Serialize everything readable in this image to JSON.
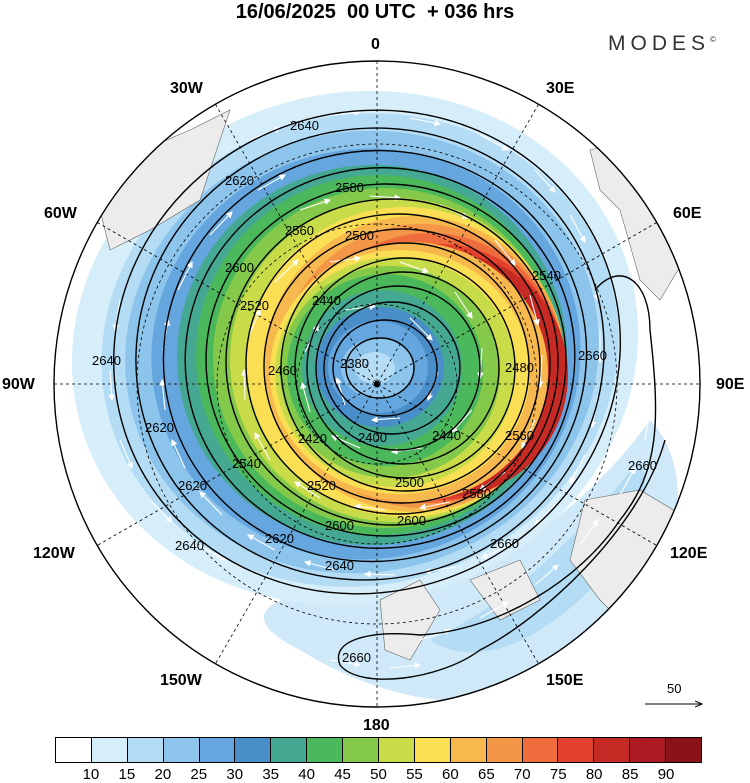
{
  "title": "16/06/2025  00 UTC  + 036 hrs",
  "brand": "MODES",
  "brand_mark": "©",
  "longitude_labels": {
    "0": "0",
    "30E": "30E",
    "60E": "60E",
    "90E": "90E",
    "120E": "120E",
    "150E": "150E",
    "180": "180",
    "150W": "150W",
    "120W": "120W",
    "90W": "90W",
    "60W": "60W",
    "30W": "30W"
  },
  "reference_vector_label": "50",
  "colorbar": {
    "ticks": [
      "10",
      "15",
      "20",
      "25",
      "30",
      "35",
      "40",
      "45",
      "50",
      "55",
      "60",
      "65",
      "70",
      "75",
      "80",
      "85",
      "90"
    ],
    "colors": [
      "#ffffff",
      "#d6eefa",
      "#b4dcf5",
      "#8cc4ec",
      "#64a6dd",
      "#4a8ec9",
      "#45a892",
      "#4cb85c",
      "#84c94a",
      "#c8dc4a",
      "#fadf55",
      "#f7b94d",
      "#f39647",
      "#ef6d3c",
      "#e2412e",
      "#c62a25",
      "#ab1a20",
      "#8b1218"
    ]
  },
  "contours": {
    "height_labels": [
      "2640",
      "2620",
      "2580",
      "2560",
      "2500",
      "2540",
      "2600",
      "2520",
      "2440",
      "2380",
      "2460",
      "2420",
      "2400",
      "2480",
      "2660"
    ]
  },
  "chart_data": {
    "type": "polar-stereographic-map",
    "field_shaded": "wind speed",
    "field_contoured": "geopotential height",
    "vector_reference": 50,
    "contour_levels": [
      2380,
      2400,
      2420,
      2440,
      2460,
      2480,
      2500,
      2520,
      2540,
      2560,
      2580,
      2600,
      2620,
      2640,
      2660
    ],
    "shading_levels": [
      10,
      15,
      20,
      25,
      30,
      35,
      40,
      45,
      50,
      55,
      60,
      65,
      70,
      75,
      80,
      85,
      90
    ]
  }
}
